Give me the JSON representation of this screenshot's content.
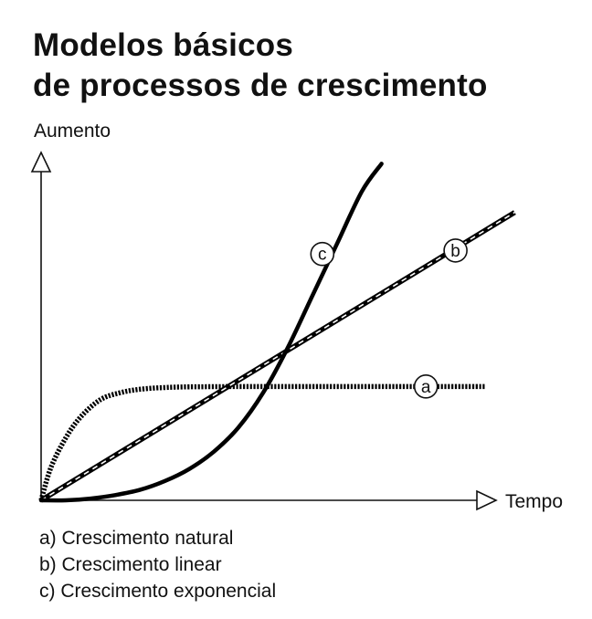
{
  "title_lines": [
    "Modelos básicos",
    "de processos de crescimento"
  ],
  "chart_data": {
    "type": "line",
    "ylabel": "Aumento",
    "xlabel": "Tempo",
    "xlim": [
      0,
      10
    ],
    "ylim": [
      0,
      10
    ],
    "grid": false,
    "series": [
      {
        "name": "a",
        "style": "dotted",
        "color": "#000000",
        "x": [
          0,
          0.2,
          0.5,
          0.8,
          1.2,
          1.6,
          2.0,
          2.5,
          3.0,
          4.0,
          5.0,
          6.0,
          7.0,
          8.0,
          9.0
        ],
        "y": [
          0,
          0.95,
          1.8,
          2.4,
          2.9,
          3.1,
          3.2,
          3.25,
          3.27,
          3.28,
          3.28,
          3.28,
          3.28,
          3.28,
          3.28
        ]
      },
      {
        "name": "b",
        "style": "dashed",
        "color": "#000000",
        "x": [
          0,
          9.6
        ],
        "y": [
          0,
          8.3
        ]
      },
      {
        "name": "c",
        "style": "solid",
        "color": "#000000",
        "x": [
          0,
          0.5,
          1.0,
          1.5,
          2.0,
          2.5,
          3.0,
          3.5,
          4.0,
          4.5,
          5.0,
          5.5,
          6.0,
          6.5,
          6.9
        ],
        "y": [
          0,
          0.0,
          0.05,
          0.15,
          0.3,
          0.55,
          0.9,
          1.4,
          2.1,
          3.1,
          4.4,
          5.9,
          7.4,
          8.9,
          9.7
        ]
      }
    ],
    "annotations": [
      {
        "label": "a",
        "x": 7.8,
        "y": 3.28
      },
      {
        "label": "b",
        "x": 8.4,
        "y": 7.2
      },
      {
        "label": "c",
        "x": 5.7,
        "y": 7.1
      }
    ]
  },
  "legend": [
    "a) Crescimento natural",
    "b) Crescimento linear",
    "c) Crescimento exponencial"
  ]
}
